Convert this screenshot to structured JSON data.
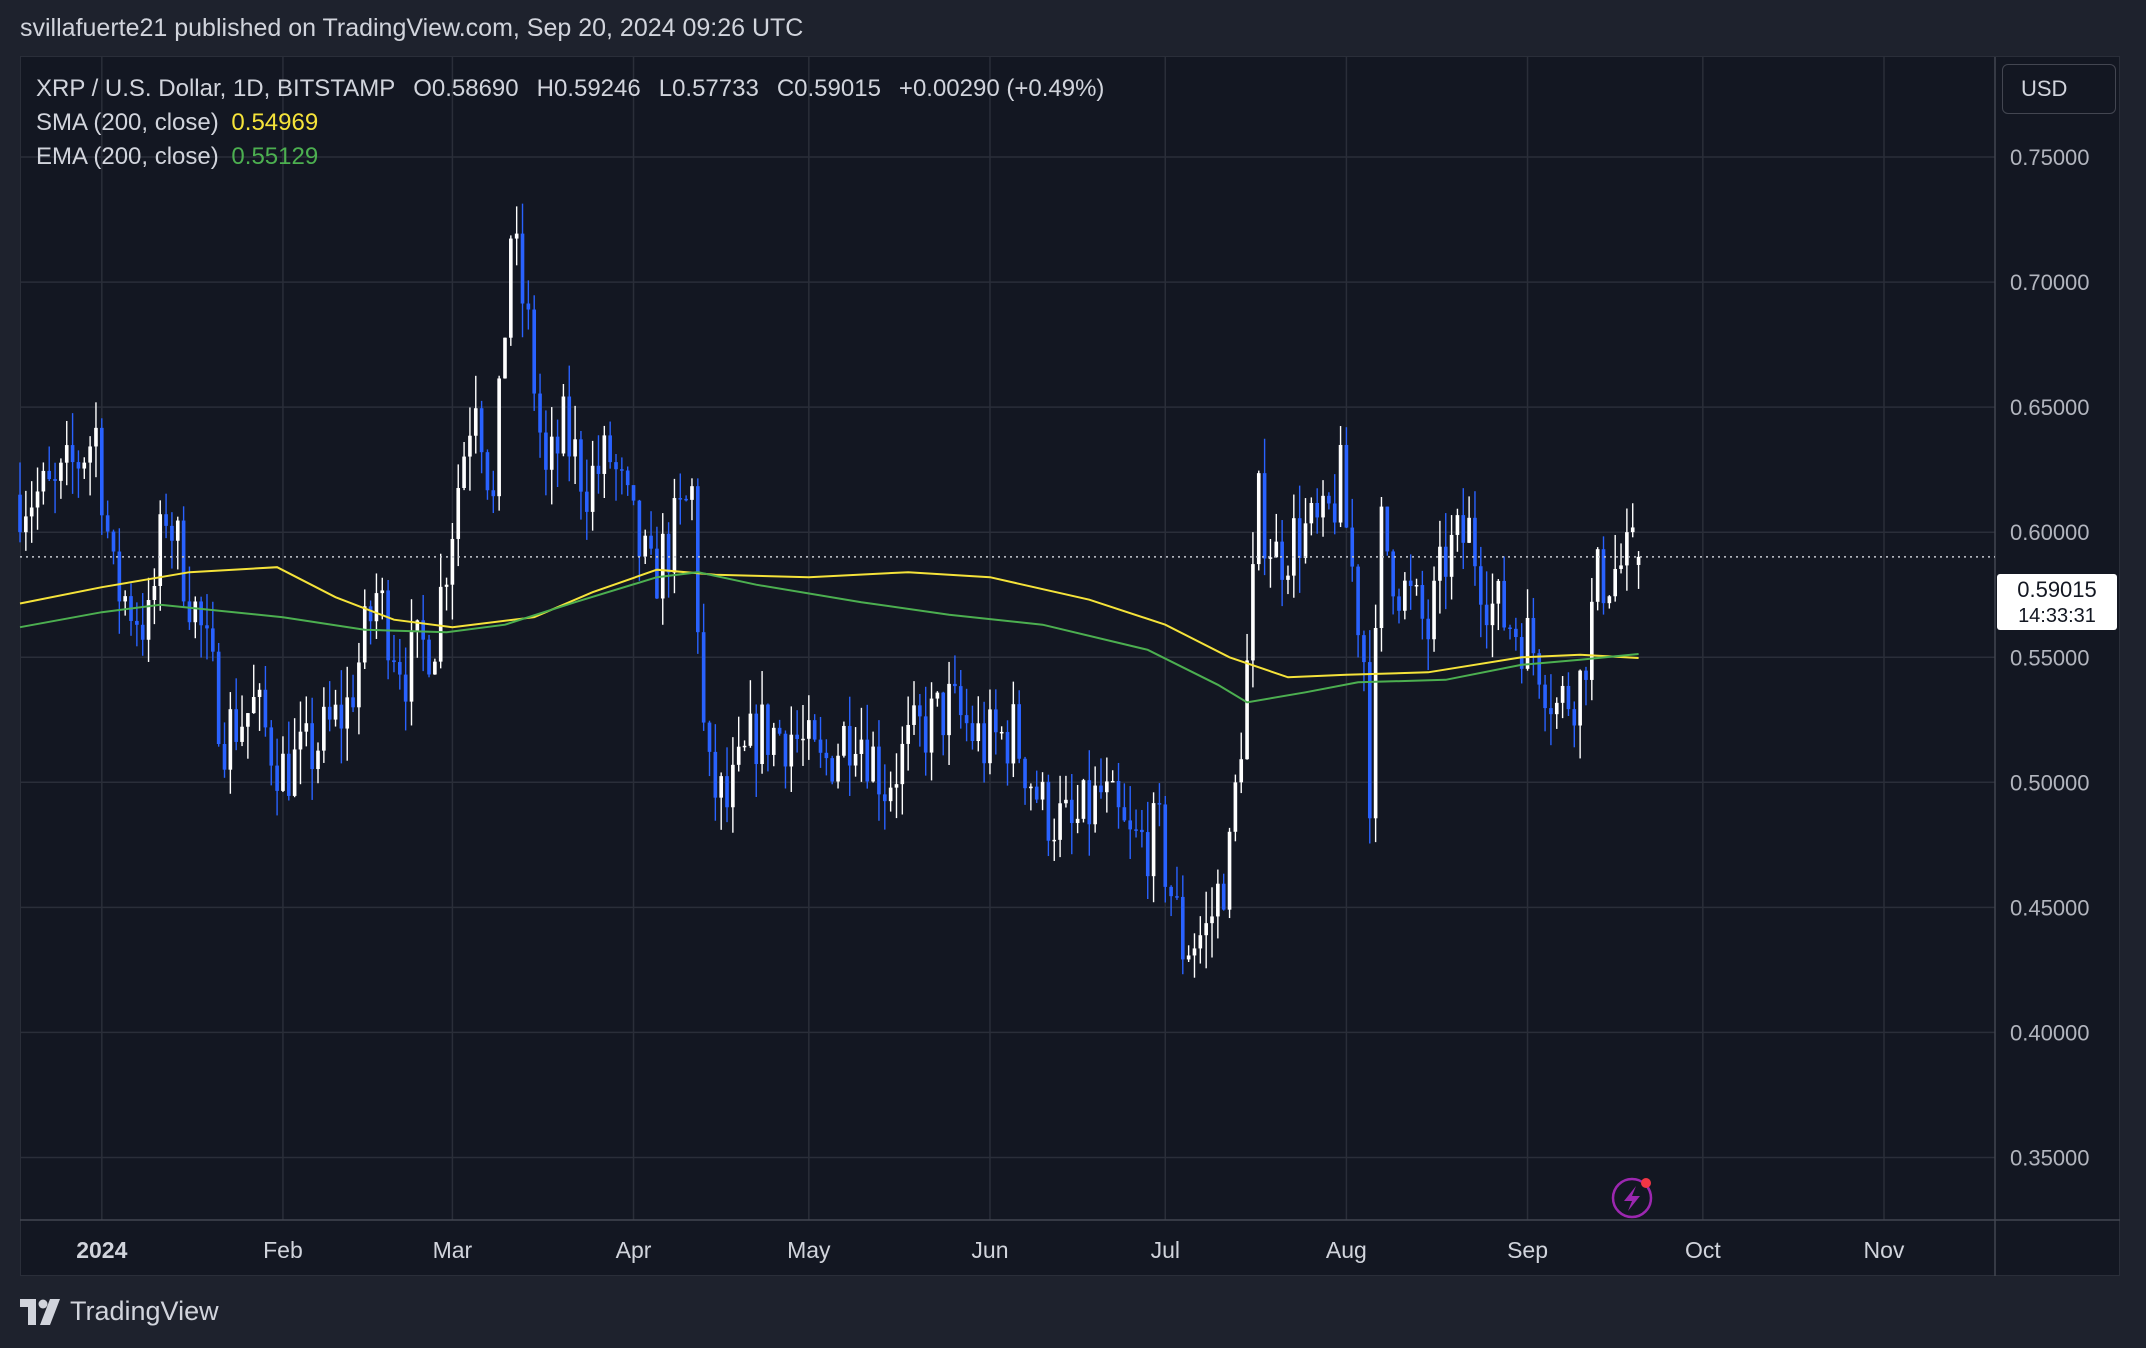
{
  "header": {
    "publisher": "svillafuerte21 published on TradingView.com, Sep 20, 2024 09:26 UTC"
  },
  "legend": {
    "symbol": "XRP / U.S. Dollar, 1D, BITSTAMP",
    "open_label": "O0.58690",
    "high_label": "H0.59246",
    "low_label": "L0.57733",
    "close_label": "C0.59015",
    "change_label": "+0.00290 (+0.49%)",
    "sma_label": "SMA (200, close)",
    "sma_value": "0.54969",
    "ema_label": "EMA (200, close)",
    "ema_value": "0.55129"
  },
  "currency_button": "USD",
  "price_tag": {
    "price": "0.59015",
    "countdown": "14:33:31"
  },
  "colors": {
    "background": "#131722",
    "up_candle": "#ffffff",
    "down_candle": "#2962ff",
    "sma": "#f5e33a",
    "ema": "#4caf50",
    "grid": "#2a2e39"
  },
  "icons": {
    "lightning": "lightning-icon",
    "logo": "tradingview-logo-icon"
  },
  "footer": {
    "brand": "TradingView"
  },
  "chart_data": {
    "type": "candlestick",
    "timeframe": "1D",
    "x_axis": {
      "range": [
        "2023-12-18",
        "2024-11-20"
      ],
      "tick_labels": [
        {
          "date": "2024-01-01",
          "label": "2024",
          "bold": true
        },
        {
          "date": "2024-02-01",
          "label": "Feb"
        },
        {
          "date": "2024-03-01",
          "label": "Mar"
        },
        {
          "date": "2024-04-01",
          "label": "Apr"
        },
        {
          "date": "2024-05-01",
          "label": "May"
        },
        {
          "date": "2024-06-01",
          "label": "Jun"
        },
        {
          "date": "2024-07-01",
          "label": "Jul"
        },
        {
          "date": "2024-08-01",
          "label": "Aug"
        },
        {
          "date": "2024-09-01",
          "label": "Sep"
        },
        {
          "date": "2024-10-01",
          "label": "Oct"
        },
        {
          "date": "2024-11-01",
          "label": "Nov"
        }
      ]
    },
    "y_axis": {
      "range": [
        0.325,
        0.79
      ],
      "ticks": [
        {
          "value": 0.75,
          "label": "0.75000"
        },
        {
          "value": 0.7,
          "label": "0.70000"
        },
        {
          "value": 0.65,
          "label": "0.65000"
        },
        {
          "value": 0.6,
          "label": "0.60000"
        },
        {
          "value": 0.55,
          "label": "0.55000"
        },
        {
          "value": 0.5,
          "label": "0.50000"
        },
        {
          "value": 0.45,
          "label": "0.45000"
        },
        {
          "value": 0.4,
          "label": "0.40000"
        },
        {
          "value": 0.35,
          "label": "0.35000"
        }
      ],
      "position": "right"
    },
    "grid": true,
    "last_price": 0.59015,
    "anchors": [
      [
        "2023-12-18",
        0.615,
        0.655
      ],
      [
        "2023-12-24",
        0.615,
        0.6
      ],
      [
        "2023-12-31",
        0.64,
        0.627
      ],
      [
        "2024-01-03",
        0.58,
        0.58
      ],
      [
        "2024-01-09",
        0.562,
        0.57
      ],
      [
        "2024-01-12",
        0.61,
        0.595
      ],
      [
        "2024-01-18",
        0.56,
        0.565
      ],
      [
        "2024-01-22",
        0.52,
        0.52
      ],
      [
        "2024-01-27",
        0.53,
        0.54
      ],
      [
        "2024-02-01",
        0.505,
        0.5
      ],
      [
        "2024-02-05",
        0.51,
        0.515
      ],
      [
        "2024-02-12",
        0.53,
        0.535
      ],
      [
        "2024-02-17",
        0.575,
        0.56
      ],
      [
        "2024-02-22",
        0.545,
        0.545
      ],
      [
        "2024-02-27",
        0.56,
        0.565
      ],
      [
        "2024-03-02",
        0.62,
        0.61
      ],
      [
        "2024-03-05",
        0.66,
        0.64
      ],
      [
        "2024-03-08",
        0.61,
        0.615
      ],
      [
        "2024-03-11",
        0.72,
        0.725
      ],
      [
        "2024-03-14",
        0.68,
        0.67
      ],
      [
        "2024-03-17",
        0.62,
        0.61
      ],
      [
        "2024-03-20",
        0.64,
        0.635
      ],
      [
        "2024-03-24",
        0.62,
        0.62
      ],
      [
        "2024-03-28",
        0.63,
        0.625
      ],
      [
        "2024-04-01",
        0.6,
        0.58
      ],
      [
        "2024-04-04",
        0.58,
        0.585
      ],
      [
        "2024-04-08",
        0.6,
        0.595
      ],
      [
        "2024-04-11",
        0.615,
        0.615
      ],
      [
        "2024-04-13",
        0.52,
        0.51
      ],
      [
        "2024-04-14",
        0.5,
        0.49
      ],
      [
        "2024-04-17",
        0.49,
        0.485
      ],
      [
        "2024-04-22",
        0.52,
        0.53
      ],
      [
        "2024-04-28",
        0.52,
        0.515
      ],
      [
        "2024-05-03",
        0.505,
        0.51
      ],
      [
        "2024-05-09",
        0.525,
        0.53
      ],
      [
        "2024-05-14",
        0.5,
        0.5
      ],
      [
        "2024-05-20",
        0.52,
        0.525
      ],
      [
        "2024-05-25",
        0.53,
        0.532
      ],
      [
        "2024-05-31",
        0.515,
        0.518
      ],
      [
        "2024-06-05",
        0.52,
        0.523
      ],
      [
        "2024-06-10",
        0.49,
        0.49
      ],
      [
        "2024-06-15",
        0.48,
        0.48
      ],
      [
        "2024-06-20",
        0.495,
        0.495
      ],
      [
        "2024-06-25",
        0.475,
        0.475
      ],
      [
        "2024-06-30",
        0.478,
        0.478
      ],
      [
        "2024-07-04",
        0.435,
        0.44
      ],
      [
        "2024-07-08",
        0.44,
        0.445
      ],
      [
        "2024-07-12",
        0.47,
        0.48
      ],
      [
        "2024-07-15",
        0.545,
        0.545
      ],
      [
        "2024-07-17",
        0.61,
        0.61
      ],
      [
        "2024-07-20",
        0.59,
        0.59
      ],
      [
        "2024-07-24",
        0.6,
        0.6
      ],
      [
        "2024-07-28",
        0.6,
        0.6
      ],
      [
        "2024-07-31",
        0.62,
        0.62
      ],
      [
        "2024-08-04",
        0.55,
        0.545
      ],
      [
        "2024-08-05",
        0.5,
        0.495
      ],
      [
        "2024-08-07",
        0.6,
        0.605
      ],
      [
        "2024-08-10",
        0.58,
        0.575
      ],
      [
        "2024-08-15",
        0.56,
        0.56
      ],
      [
        "2024-08-18",
        0.59,
        0.595
      ],
      [
        "2024-08-22",
        0.6,
        0.6
      ],
      [
        "2024-08-26",
        0.57,
        0.565
      ],
      [
        "2024-08-31",
        0.56,
        0.56
      ],
      [
        "2024-09-03",
        0.55,
        0.55
      ],
      [
        "2024-09-06",
        0.53,
        0.53
      ],
      [
        "2024-09-10",
        0.54,
        0.54
      ],
      [
        "2024-09-13",
        0.58,
        0.58
      ],
      [
        "2024-09-16",
        0.585,
        0.585
      ],
      [
        "2024-09-20",
        0.59,
        0.59
      ]
    ],
    "sma_200": [
      [
        "2023-12-18",
        0.5715
      ],
      [
        "2024-01-01",
        0.578
      ],
      [
        "2024-01-16",
        0.584
      ],
      [
        "2024-01-31",
        0.586
      ],
      [
        "2024-02-10",
        0.574
      ],
      [
        "2024-02-20",
        0.565
      ],
      [
        "2024-03-01",
        0.562
      ],
      [
        "2024-03-15",
        0.566
      ],
      [
        "2024-03-25",
        0.576
      ],
      [
        "2024-04-05",
        0.585
      ],
      [
        "2024-04-15",
        0.583
      ],
      [
        "2024-05-01",
        0.582
      ],
      [
        "2024-05-18",
        0.584
      ],
      [
        "2024-06-01",
        0.582
      ],
      [
        "2024-06-18",
        0.573
      ],
      [
        "2024-07-01",
        0.563
      ],
      [
        "2024-07-12",
        0.55
      ],
      [
        "2024-07-22",
        0.542
      ],
      [
        "2024-08-01",
        0.543
      ],
      [
        "2024-08-15",
        0.544
      ],
      [
        "2024-08-31",
        0.55
      ],
      [
        "2024-09-10",
        0.551
      ],
      [
        "2024-09-20",
        0.5497
      ]
    ],
    "ema_200": [
      [
        "2023-12-18",
        0.562
      ],
      [
        "2024-01-01",
        0.568
      ],
      [
        "2024-01-11",
        0.571
      ],
      [
        "2024-02-01",
        0.566
      ],
      [
        "2024-02-15",
        0.561
      ],
      [
        "2024-02-29",
        0.56
      ],
      [
        "2024-03-10",
        0.563
      ],
      [
        "2024-03-22",
        0.572
      ],
      [
        "2024-04-05",
        0.582
      ],
      [
        "2024-04-12",
        0.584
      ],
      [
        "2024-04-22",
        0.579
      ],
      [
        "2024-05-10",
        0.572
      ],
      [
        "2024-05-25",
        0.567
      ],
      [
        "2024-06-10",
        0.563
      ],
      [
        "2024-06-28",
        0.553
      ],
      [
        "2024-07-10",
        0.539
      ],
      [
        "2024-07-15",
        0.532
      ],
      [
        "2024-07-25",
        0.536
      ],
      [
        "2024-08-03",
        0.54
      ],
      [
        "2024-08-18",
        0.541
      ],
      [
        "2024-08-31",
        0.547
      ],
      [
        "2024-09-10",
        0.549
      ],
      [
        "2024-09-20",
        0.5513
      ]
    ],
    "last_price_line": 0.59015
  }
}
